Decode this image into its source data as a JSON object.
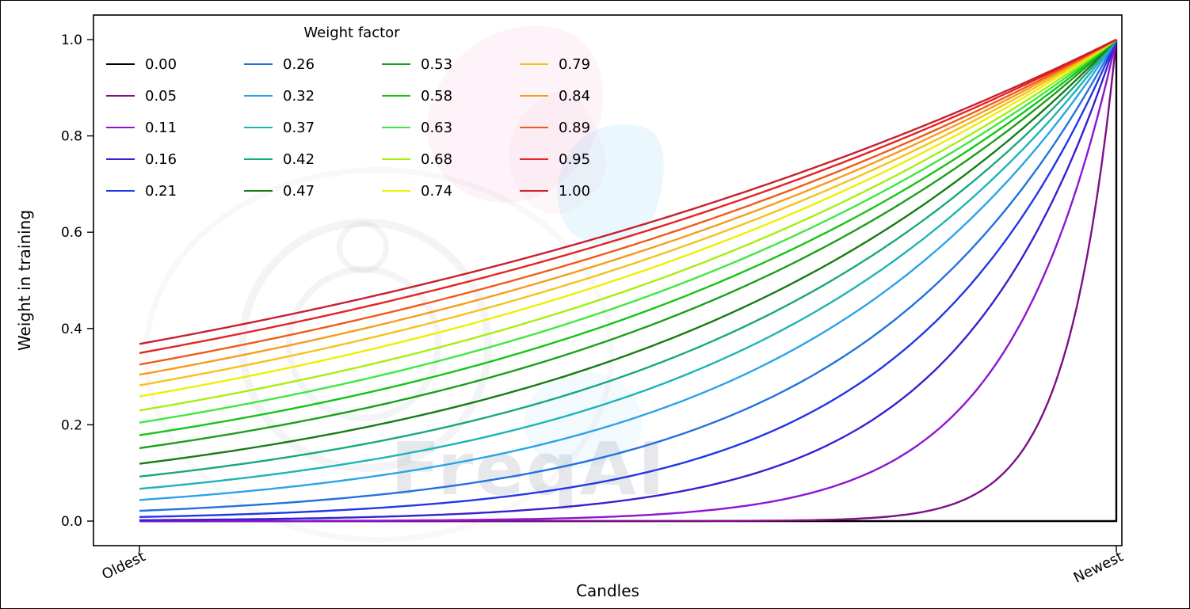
{
  "figure": {
    "watermark_text": "FreqAI"
  },
  "chart_data": {
    "type": "line",
    "title": "",
    "xlabel": "Candles",
    "ylabel": "Weight in training",
    "x_tick_labels": [
      "Oldest",
      "Newest"
    ],
    "y_ticks": [
      0.0,
      0.2,
      0.4,
      0.6,
      0.8,
      1.0
    ],
    "y_tick_labels": [
      "0.0",
      "0.2",
      "0.4",
      "0.6",
      "0.8",
      "1.0"
    ],
    "ylim": [
      0,
      1
    ],
    "grid": false,
    "axes_box": true,
    "curve_formula": "weight(x) = exp((x - 1) / weight_factor) for x in [0,1] from Oldest to Newest; weight_factor = 0 gives weight 0 for all candles except the newest, which is 1",
    "legend": {
      "title": "Weight factor",
      "position": "upper left",
      "ncol": 4,
      "nrow": 5,
      "frame": false
    },
    "series": [
      {
        "label": "0.00",
        "weight_factor": 0.0,
        "weight_at_oldest": 0.0,
        "weight_at_newest": 1.0,
        "color": "#000000"
      },
      {
        "label": "0.05",
        "weight_factor": 0.05,
        "weight_at_oldest": 0.0,
        "weight_at_newest": 1.0,
        "color": "#7e0f86"
      },
      {
        "label": "0.11",
        "weight_factor": 0.11,
        "weight_at_oldest": 0.0001,
        "weight_at_newest": 1.0,
        "color": "#8d14d4"
      },
      {
        "label": "0.16",
        "weight_factor": 0.16,
        "weight_at_oldest": 0.0019,
        "weight_at_newest": 1.0,
        "color": "#3a1fd0"
      },
      {
        "label": "0.21",
        "weight_factor": 0.21,
        "weight_at_oldest": 0.0086,
        "weight_at_newest": 1.0,
        "color": "#2236e8"
      },
      {
        "label": "0.26",
        "weight_factor": 0.26,
        "weight_at_oldest": 0.0213,
        "weight_at_newest": 1.0,
        "color": "#2272dd"
      },
      {
        "label": "0.32",
        "weight_factor": 0.32,
        "weight_at_oldest": 0.0439,
        "weight_at_newest": 1.0,
        "color": "#2ba3e8"
      },
      {
        "label": "0.37",
        "weight_factor": 0.37,
        "weight_at_oldest": 0.067,
        "weight_at_newest": 1.0,
        "color": "#1db4b4"
      },
      {
        "label": "0.42",
        "weight_factor": 0.42,
        "weight_at_oldest": 0.0924,
        "weight_at_newest": 1.0,
        "color": "#18a87d"
      },
      {
        "label": "0.47",
        "weight_factor": 0.47,
        "weight_at_oldest": 0.1191,
        "weight_at_newest": 1.0,
        "color": "#167c13"
      },
      {
        "label": "0.53",
        "weight_factor": 0.53,
        "weight_at_oldest": 0.1516,
        "weight_at_newest": 1.0,
        "color": "#1c9e1c"
      },
      {
        "label": "0.58",
        "weight_factor": 0.58,
        "weight_at_oldest": 0.1783,
        "weight_at_newest": 1.0,
        "color": "#15c415"
      },
      {
        "label": "0.63",
        "weight_factor": 0.63,
        "weight_at_oldest": 0.2045,
        "weight_at_newest": 1.0,
        "color": "#3fe83f"
      },
      {
        "label": "0.68",
        "weight_factor": 0.68,
        "weight_at_oldest": 0.2298,
        "weight_at_newest": 1.0,
        "color": "#a6ef10"
      },
      {
        "label": "0.74",
        "weight_factor": 0.74,
        "weight_at_oldest": 0.2589,
        "weight_at_newest": 1.0,
        "color": "#eef000"
      },
      {
        "label": "0.79",
        "weight_factor": 0.79,
        "weight_at_oldest": 0.282,
        "weight_at_newest": 1.0,
        "color": "#f5c21c"
      },
      {
        "label": "0.84",
        "weight_factor": 0.84,
        "weight_at_oldest": 0.3041,
        "weight_at_newest": 1.0,
        "color": "#f79c1b"
      },
      {
        "label": "0.89",
        "weight_factor": 0.89,
        "weight_at_oldest": 0.325,
        "weight_at_newest": 1.0,
        "color": "#f25a1a"
      },
      {
        "label": "0.95",
        "weight_factor": 0.95,
        "weight_at_oldest": 0.3489,
        "weight_at_newest": 1.0,
        "color": "#e62222"
      },
      {
        "label": "1.00",
        "weight_factor": 1.0,
        "weight_at_oldest": 0.3679,
        "weight_at_newest": 1.0,
        "color": "#c8202e"
      }
    ]
  }
}
